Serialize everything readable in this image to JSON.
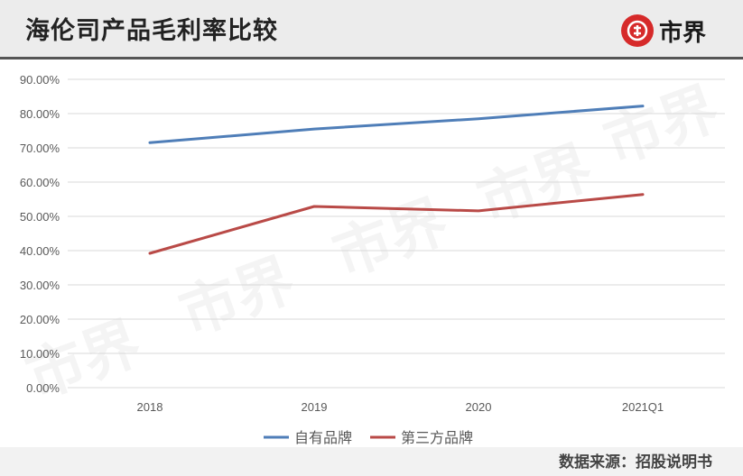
{
  "header": {
    "title": "海伦司产品毛利率比较",
    "logo_text": "市界"
  },
  "watermark": "市界",
  "source": "数据来源：招股说明书",
  "chart_data": {
    "type": "line",
    "title": "海伦司产品毛利率比较",
    "xlabel": "",
    "ylabel": "",
    "categories": [
      "2018",
      "2019",
      "2020",
      "2021Q1"
    ],
    "ylim": [
      0,
      90
    ],
    "yticks": [
      "0.00%",
      "10.00%",
      "20.00%",
      "30.00%",
      "40.00%",
      "50.00%",
      "60.00%",
      "70.00%",
      "80.00%",
      "90.00%"
    ],
    "grid": true,
    "legend_position": "bottom",
    "series": [
      {
        "name": "自有品牌",
        "color": "#4f7eb8",
        "values": [
          71.5,
          75.5,
          78.5,
          82.2
        ]
      },
      {
        "name": "第三方品牌",
        "color": "#b94a47",
        "values": [
          39.2,
          52.9,
          51.6,
          56.4
        ]
      }
    ]
  },
  "colors": {
    "brand": "#d62a2a",
    "grid": "#d9d9d9"
  }
}
